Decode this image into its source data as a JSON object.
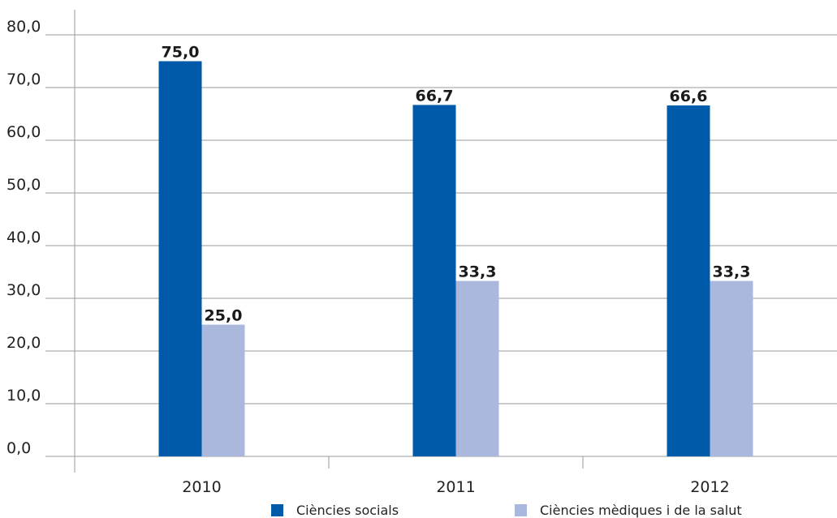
{
  "chart_data": {
    "type": "bar",
    "categories": [
      "2010",
      "2011",
      "2012"
    ],
    "series": [
      {
        "name": "Ciències socials",
        "color": "#005aaa",
        "values": [
          75.0,
          66.7,
          66.6
        ],
        "labels": [
          "75,0",
          "66,7",
          "66,6"
        ]
      },
      {
        "name": "Ciències mèdiques i de la salut",
        "color": "#aab8dd",
        "values": [
          25.0,
          33.3,
          33.3
        ],
        "labels": [
          "25,0",
          "33,3",
          "33,3"
        ]
      }
    ],
    "y_ticks": [
      {
        "value": 0,
        "label": "0,0"
      },
      {
        "value": 10,
        "label": "10,0"
      },
      {
        "value": 20,
        "label": "20,0"
      },
      {
        "value": 30,
        "label": "30,0"
      },
      {
        "value": 40,
        "label": "40,0"
      },
      {
        "value": 50,
        "label": "50,0"
      },
      {
        "value": 60,
        "label": "60,0"
      },
      {
        "value": 70,
        "label": "70,0"
      },
      {
        "value": 80,
        "label": "80,0"
      }
    ],
    "ylim": [
      0,
      80
    ],
    "grid": true,
    "legend_position": "bottom",
    "title": "",
    "xlabel": "",
    "ylabel": ""
  }
}
